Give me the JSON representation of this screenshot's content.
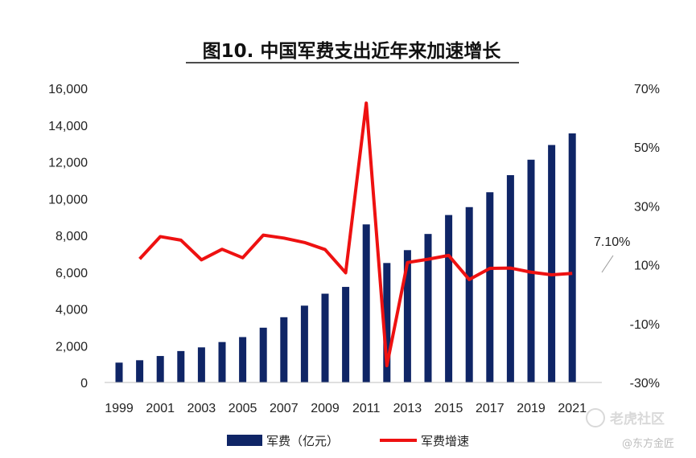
{
  "chart_data": {
    "type": "bar",
    "title": "图10. 中国军费支出近年来加速增长",
    "categories": [
      "1999",
      "2000",
      "2001",
      "2002",
      "2003",
      "2004",
      "2005",
      "2006",
      "2007",
      "2008",
      "2009",
      "2010",
      "2011",
      "2012",
      "2013",
      "2014",
      "2015",
      "2016",
      "2017",
      "2018",
      "2019",
      "2020",
      "2021"
    ],
    "x_tick_labels": [
      "1999",
      "2001",
      "2003",
      "2005",
      "2007",
      "2009",
      "2011",
      "2013",
      "2015",
      "2017",
      "2019",
      "2021"
    ],
    "series": [
      {
        "name": "军费（亿元）",
        "type": "bar",
        "axis": "left",
        "color": "#0f2566",
        "values": [
          1080,
          1210,
          1440,
          1710,
          1910,
          2200,
          2470,
          2980,
          3550,
          4180,
          4830,
          5200,
          8600,
          6500,
          7200,
          8080,
          9110,
          9540,
          10350,
          11280,
          12120,
          12920,
          13550
        ]
      },
      {
        "name": "军费增速",
        "type": "line",
        "axis": "right",
        "color": "#ee1111",
        "values": [
          null,
          12.0,
          19.6,
          18.4,
          11.7,
          15.3,
          12.4,
          20.1,
          19.1,
          17.6,
          15.2,
          7.3,
          65.0,
          -24.3,
          10.8,
          11.9,
          13.2,
          5.0,
          8.8,
          8.9,
          7.5,
          6.6,
          7.1
        ]
      }
    ],
    "ylim_left": [
      0,
      16000
    ],
    "yticks_left": [
      "0",
      "2,000",
      "4,000",
      "6,000",
      "8,000",
      "10,000",
      "12,000",
      "14,000",
      "16,000"
    ],
    "ylim_right": [
      -30,
      70
    ],
    "yticks_right": [
      "-30%",
      "-10%",
      "10%",
      "30%",
      "50%",
      "70%"
    ],
    "annotation": "7.10%",
    "legend_position": "bottom",
    "grid": false
  },
  "watermark": {
    "brand": "老虎社区",
    "source": "@东方金匠"
  }
}
